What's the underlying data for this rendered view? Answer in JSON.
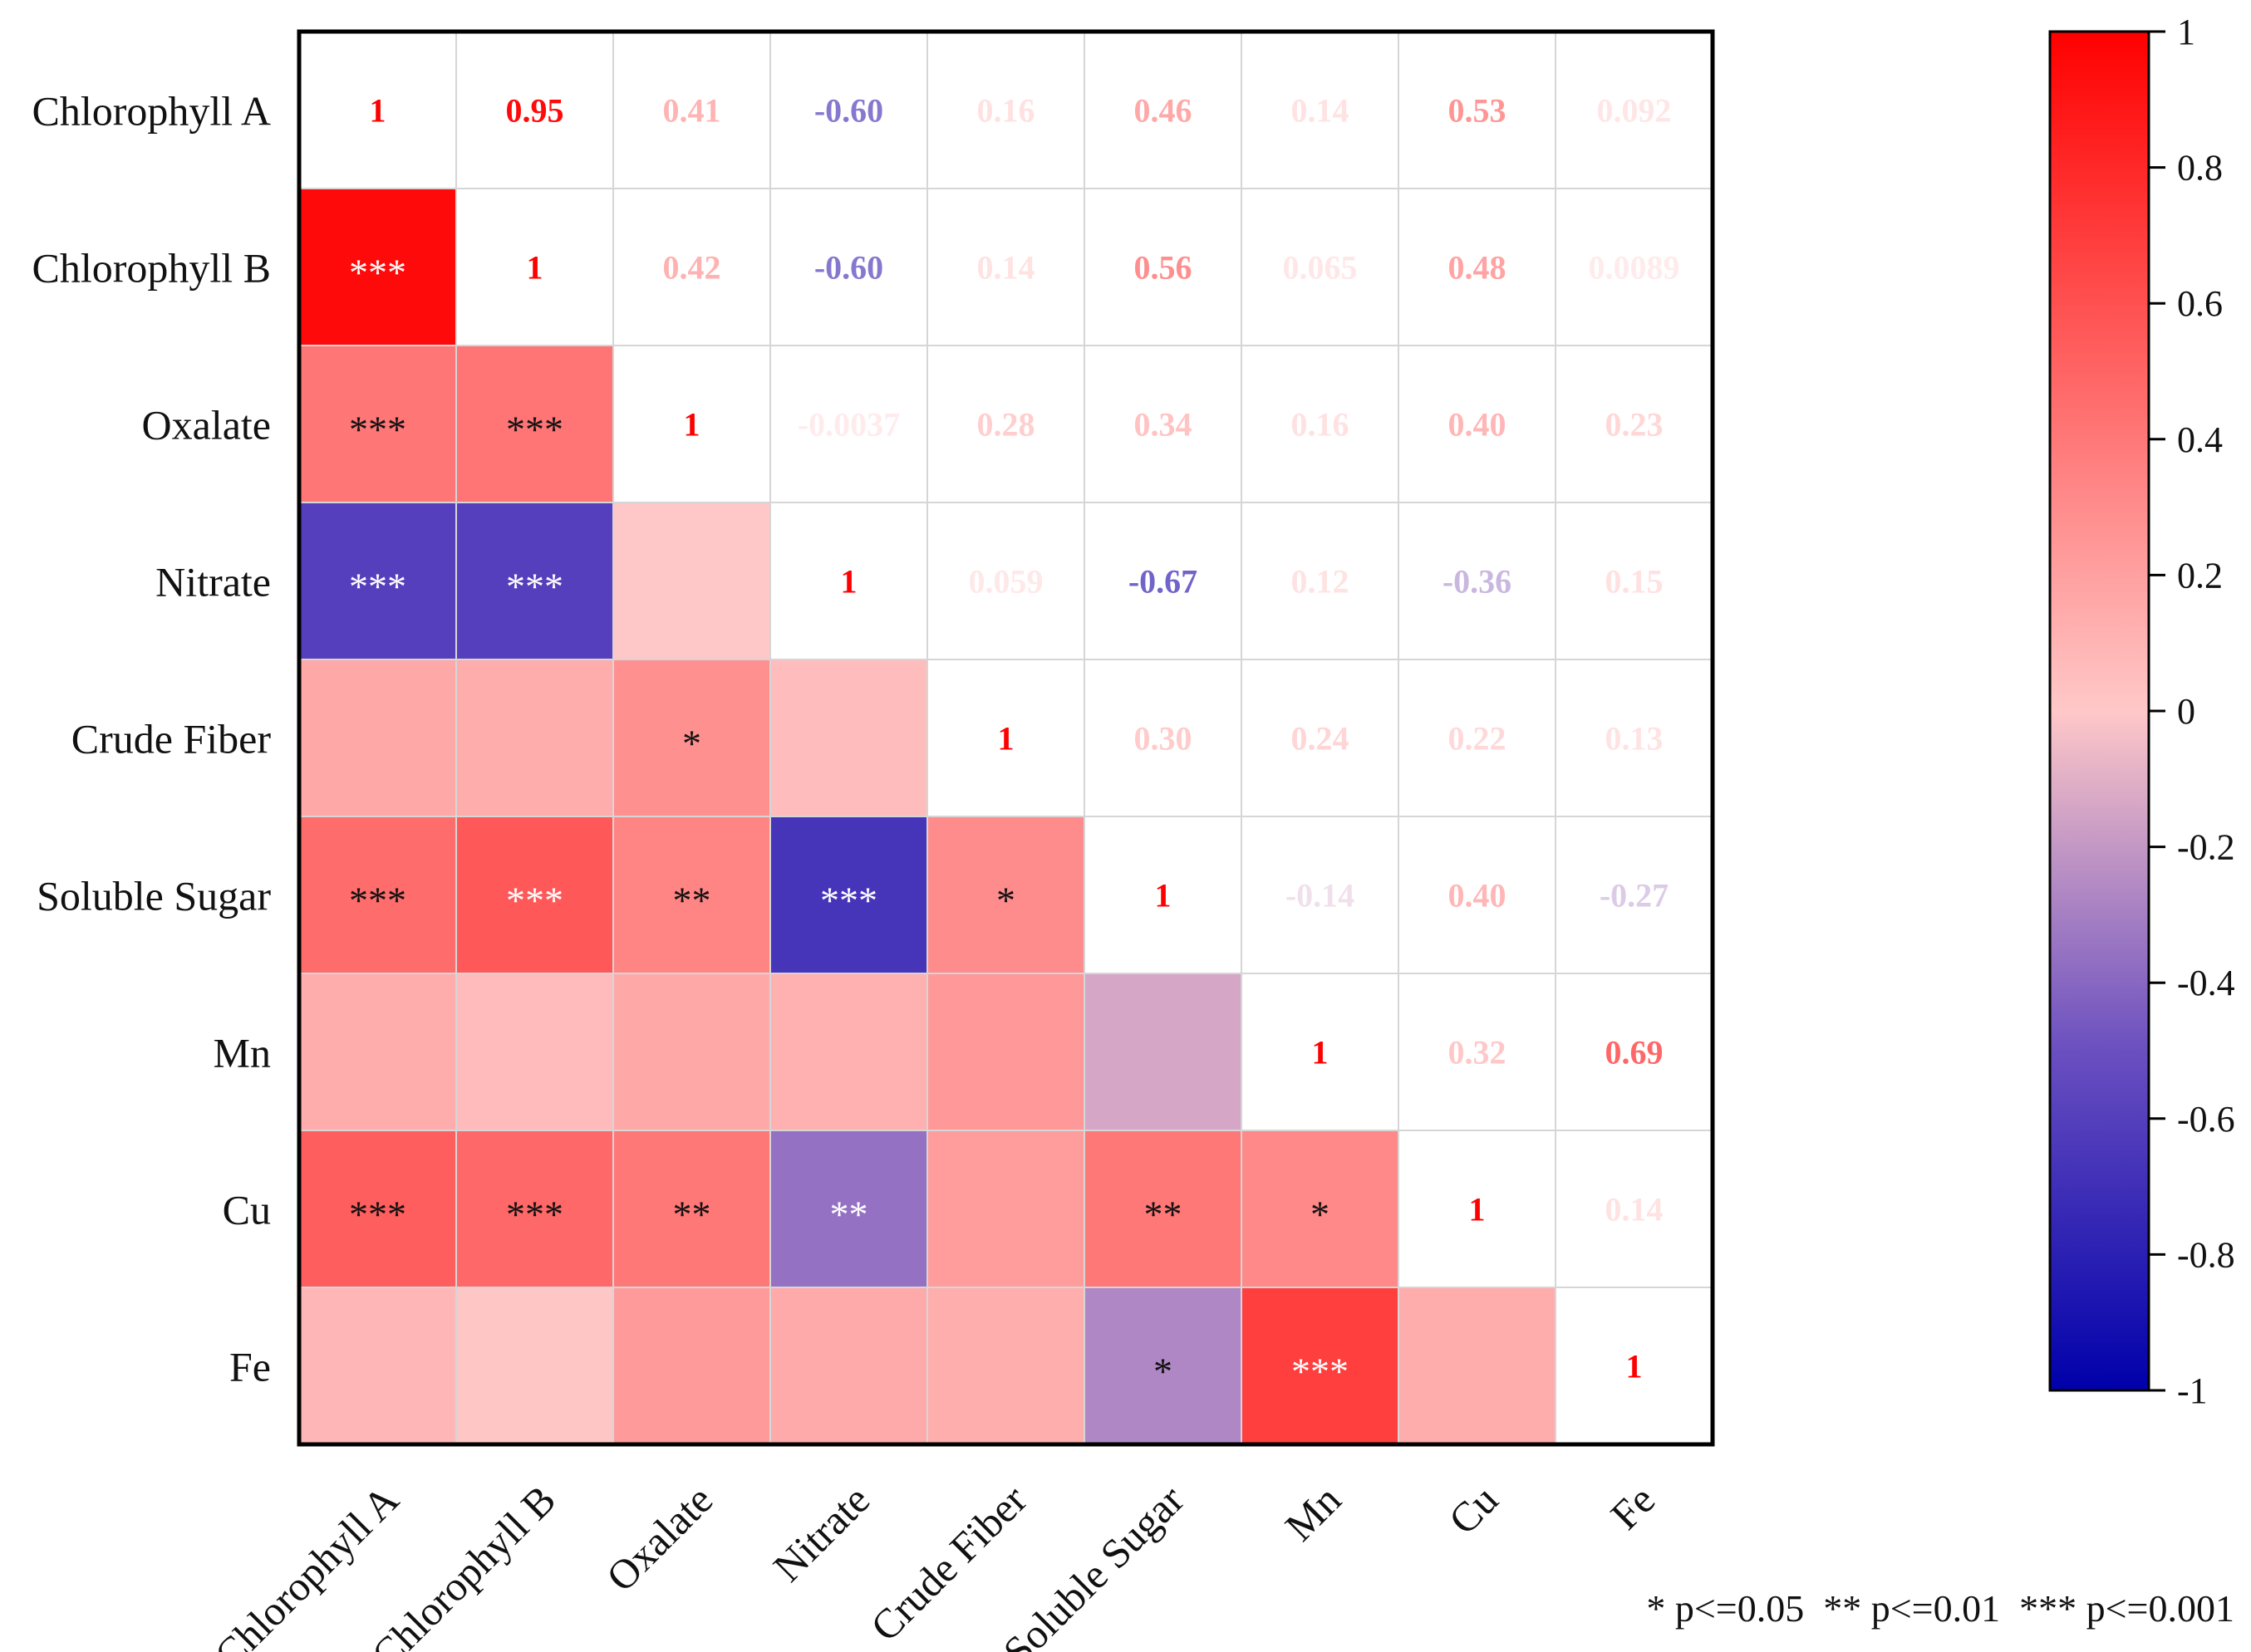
{
  "chart_data": {
    "type": "heatmap",
    "title": "",
    "variables": [
      "Chlorophyll A",
      "Chlorophyll B",
      "Oxalate",
      "Nitrate",
      "Crude Fiber",
      "Soluble Sugar",
      "Mn",
      "Cu",
      "Fe"
    ],
    "upper_labels": [
      [
        "1",
        "0.95",
        "0.41",
        "-0.60",
        "0.16",
        "0.46",
        "0.14",
        "0.53",
        "0.092"
      ],
      [
        "",
        "1",
        "0.42",
        "-0.60",
        "0.14",
        "0.56",
        "0.065",
        "0.48",
        "0.0089"
      ],
      [
        "",
        "",
        "1",
        "-0.0037",
        "0.28",
        "0.34",
        "0.16",
        "0.40",
        "0.23"
      ],
      [
        "",
        "",
        "",
        "1",
        "0.059",
        "-0.67",
        "0.12",
        "-0.36",
        "0.15"
      ],
      [
        "",
        "",
        "",
        "",
        "1",
        "0.30",
        "0.24",
        "0.22",
        "0.13"
      ],
      [
        "",
        "",
        "",
        "",
        "",
        "1",
        "-0.14",
        "0.40",
        "-0.27"
      ],
      [
        "",
        "",
        "",
        "",
        "",
        "",
        "1",
        "0.32",
        "0.69"
      ],
      [
        "",
        "",
        "",
        "",
        "",
        "",
        "",
        "1",
        "0.14"
      ],
      [
        "",
        "",
        "",
        "",
        "",
        "",
        "",
        "",
        "1"
      ]
    ],
    "correlations": [
      [
        1,
        0.95,
        0.41,
        -0.6,
        0.16,
        0.46,
        0.14,
        0.53,
        0.092
      ],
      [
        0.95,
        1,
        0.42,
        -0.6,
        0.14,
        0.56,
        0.065,
        0.48,
        0.0089
      ],
      [
        0.41,
        0.42,
        1,
        -0.0037,
        0.28,
        0.34,
        0.16,
        0.4,
        0.23
      ],
      [
        -0.6,
        -0.6,
        -0.0037,
        1,
        0.059,
        -0.67,
        0.12,
        -0.36,
        0.15
      ],
      [
        0.16,
        0.14,
        0.28,
        0.059,
        1,
        0.3,
        0.24,
        0.22,
        0.13
      ],
      [
        0.46,
        0.56,
        0.34,
        -0.67,
        0.3,
        1,
        -0.14,
        0.4,
        -0.27
      ],
      [
        0.14,
        0.065,
        0.16,
        0.12,
        0.24,
        -0.14,
        1,
        0.32,
        0.69
      ],
      [
        0.53,
        0.48,
        0.4,
        -0.36,
        0.22,
        0.4,
        0.32,
        1,
        0.14
      ],
      [
        0.092,
        0.0089,
        0.23,
        0.15,
        0.13,
        -0.27,
        0.69,
        0.14,
        1
      ]
    ],
    "significance": [
      [
        "",
        "",
        "",
        "",
        "",
        "",
        "",
        "",
        ""
      ],
      [
        "***",
        "",
        "",
        "",
        "",
        "",
        "",
        "",
        ""
      ],
      [
        "***",
        "***",
        "",
        "",
        "",
        "",
        "",
        "",
        ""
      ],
      [
        "***",
        "***",
        "",
        "",
        "",
        "",
        "",
        "",
        ""
      ],
      [
        "",
        "",
        "*",
        "",
        "",
        "",
        "",
        "",
        ""
      ],
      [
        "***",
        "***",
        "**",
        "***",
        "*",
        "",
        "",
        "",
        ""
      ],
      [
        "",
        "",
        "",
        "",
        "",
        "",
        "",
        "",
        ""
      ],
      [
        "***",
        "***",
        "**",
        "**",
        "",
        "**",
        "*",
        "",
        ""
      ],
      [
        "",
        "",
        "",
        "",
        "",
        "*",
        "***",
        "",
        ""
      ]
    ],
    "colorbar": {
      "range": [
        -1,
        1
      ],
      "ticks": [
        "1",
        "0.8",
        "0.6",
        "0.4",
        "0.2",
        "0",
        "-0.2",
        "-0.4",
        "-0.6",
        "-0.8",
        "-1"
      ],
      "colors": {
        "positive": "#ff0000",
        "zero": "#ffc8c8",
        "negative": "#0000aa"
      }
    },
    "grid": true,
    "legend_placement": "right",
    "significance_note": "* p<=0.05  ** p<=0.01  *** p<=0.001"
  }
}
